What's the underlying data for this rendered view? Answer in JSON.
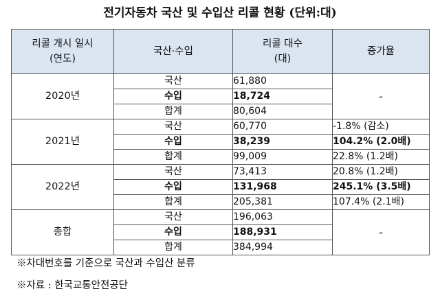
{
  "title": "전기자동차 국산 및 수입산 리콜 현황 (단위:대)",
  "headers": {
    "col1_line1": "리콜 개시 일시",
    "col1_line2": "(연도)",
    "col2": "국산·수입",
    "col3_line1": "리콜 대수",
    "col3_line2": "(대)",
    "col4": "증가율"
  },
  "groups": [
    {
      "year": "2020년",
      "rows": [
        {
          "kind": "국산",
          "count": "61,880"
        },
        {
          "kind": "수입",
          "count": "18,724"
        },
        {
          "kind": "합계",
          "count": "80,604"
        }
      ],
      "rate_merged": "-"
    },
    {
      "year": "2021년",
      "rows": [
        {
          "kind": "국산",
          "count": "60,770",
          "rate": "-1.8% (감소)"
        },
        {
          "kind": "수입",
          "count": "38,239",
          "rate": "104.2% (2.0배)"
        },
        {
          "kind": "합계",
          "count": "99,009",
          "rate": "22.8% (1.2배)"
        }
      ]
    },
    {
      "year": "2022년",
      "rows": [
        {
          "kind": "국산",
          "count": "73,413",
          "rate": "20.8% (1.2배)"
        },
        {
          "kind": "수입",
          "count": "131,968",
          "rate": "245.1% (3.5배)"
        },
        {
          "kind": "합계",
          "count": "205,381",
          "rate": "107.4% (2.1배)"
        }
      ]
    },
    {
      "year": "총합",
      "rows": [
        {
          "kind": "국산",
          "count": "196,063"
        },
        {
          "kind": "수입",
          "count": "188,931"
        },
        {
          "kind": "합계",
          "count": "384,994"
        }
      ],
      "rate_merged": "-"
    }
  ],
  "notes": [
    "※차대번호를 기준으로 국산과 수입산 분류",
    "※자료 : 한국교통안전공단"
  ]
}
